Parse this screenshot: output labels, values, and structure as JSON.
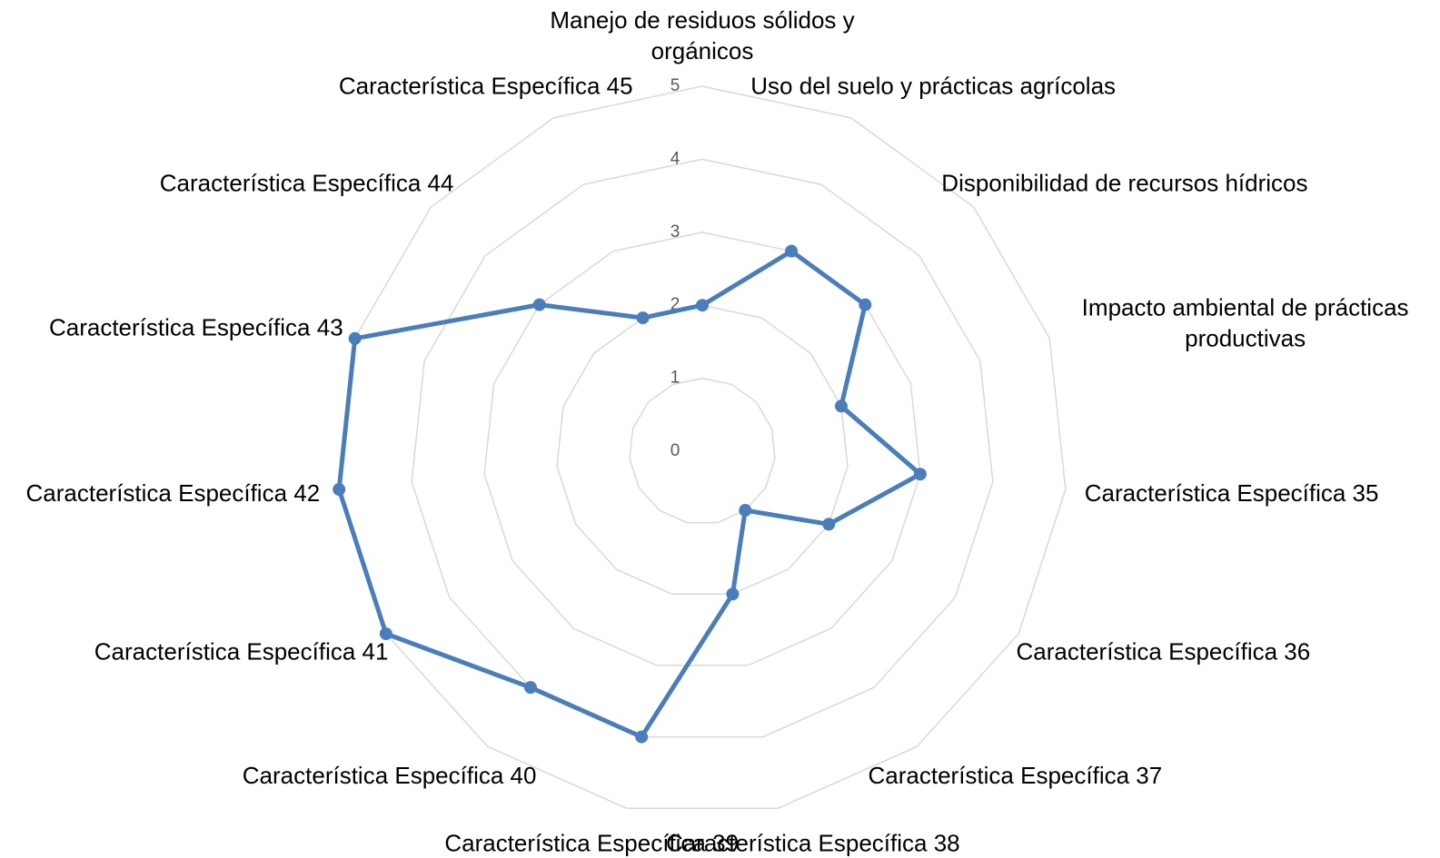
{
  "chart_data": {
    "type": "radar",
    "categories": [
      "Manejo de residuos sólidos y orgánicos",
      "Uso del suelo y prácticas agrícolas",
      "Disponibilidad de recursos hídricos",
      "Impacto ambiental de prácticas productivas",
      "Característica Específica 35",
      "Característica Específica 36",
      "Característica Específica 37",
      "Característica Específica 38",
      "Característica Específica 39",
      "Característica Específica 40",
      "Característica Específica 41",
      "Característica Específica 42",
      "Característica Específica 43",
      "Característica Específica 44",
      "Característica Específica 45"
    ],
    "values": [
      2,
      3,
      3,
      2,
      3,
      2,
      1,
      2,
      4,
      4,
      5,
      5,
      5,
      3,
      2
    ],
    "color": "#4a7ebb",
    "rlim": [
      0,
      5
    ],
    "rticks": [
      0,
      1,
      2,
      3,
      4,
      5
    ],
    "grid": true
  }
}
